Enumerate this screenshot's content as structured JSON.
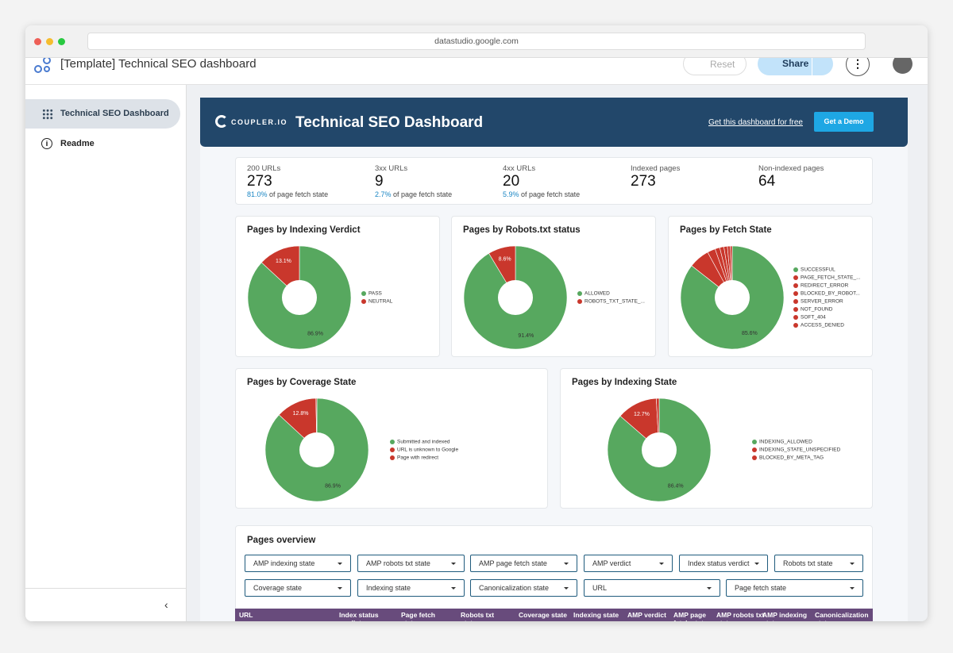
{
  "browser": {
    "url": "datastudio.google.com"
  },
  "app": {
    "title": "[Template] Technical SEO dashboard",
    "reset": "Reset",
    "share": "Share"
  },
  "sidebar": {
    "items": [
      "Technical SEO Dashboard",
      "Readme"
    ]
  },
  "banner": {
    "logo": "COUPLER.IO",
    "title": "Technical SEO Dashboard",
    "link": "Get this dashboard for free",
    "button": "Get a Demo"
  },
  "kpis": [
    {
      "label": "200 URLs",
      "value": 273,
      "pct": "81.0%",
      "note": "of page fetch state"
    },
    {
      "label": "3xx URLs",
      "value": 9,
      "pct": "2.7%",
      "note": "of page fetch state"
    },
    {
      "label": "4xx URLs",
      "value": 20,
      "pct": "5.9%",
      "note": "of page fetch state"
    },
    {
      "label": "Indexed pages",
      "value": 273
    },
    {
      "label": "Non-indexed pages",
      "value": 64
    }
  ],
  "chart_data": [
    {
      "type": "pie",
      "title": "Pages by Indexing Verdict",
      "categories": [
        "PASS",
        "NEUTRAL"
      ],
      "values": [
        86.9,
        13.1
      ],
      "value_labels": [
        "86.9%",
        "13.1%"
      ],
      "colors": [
        "#57a85f",
        "#c9372c"
      ]
    },
    {
      "type": "pie",
      "title": "Pages by Robots.txt status",
      "categories": [
        "ALLOWED",
        "ROBOTS_TXT_STATE_..."
      ],
      "values": [
        91.4,
        8.6
      ],
      "value_labels": [
        "91.4%",
        "8.6%"
      ],
      "colors": [
        "#57a85f",
        "#c9372c"
      ]
    },
    {
      "type": "pie",
      "title": "Pages by Fetch State",
      "categories": [
        "SUCCESSFUL",
        "PAGE_FETCH_STATE_...",
        "REDIRECT_ERROR",
        "BLOCKED_BY_ROBOT...",
        "SERVER_ERROR",
        "NOT_FOUND",
        "SOFT_404",
        "ACCESS_DENIED"
      ],
      "values": [
        85.6,
        6.5,
        2.5,
        1.5,
        1.3,
        1.1,
        0.9,
        0.6
      ],
      "value_labels": [
        "85.6%",
        null,
        null,
        null,
        null,
        null,
        null,
        null
      ],
      "colors": [
        "#57a85f",
        "#c9372c",
        "#c9372c",
        "#c9372c",
        "#c9372c",
        "#c9372c",
        "#c9372c",
        "#c9372c"
      ]
    },
    {
      "type": "pie",
      "title": "Pages by Coverage State",
      "categories": [
        "Submitted and indexed",
        "URL is unknown to Google",
        "Page with redirect"
      ],
      "values": [
        86.9,
        12.8,
        0.3
      ],
      "value_labels": [
        "86.9%",
        "12.8%",
        null
      ],
      "colors": [
        "#57a85f",
        "#c9372c",
        "#c9372c"
      ]
    },
    {
      "type": "pie",
      "title": "Pages by Indexing State",
      "categories": [
        "INDEXING_ALLOWED",
        "INDEXING_STATE_UNSPECIFIED",
        "BLOCKED_BY_META_TAG"
      ],
      "values": [
        86.4,
        12.7,
        0.9
      ],
      "value_labels": [
        "86.4%",
        "12.7%",
        null
      ],
      "colors": [
        "#57a85f",
        "#c9372c",
        "#c9372c"
      ]
    }
  ],
  "overview": {
    "title": "Pages overview",
    "filters": [
      "AMP indexing state",
      "AMP robots txt state",
      "AMP page fetch state",
      "AMP verdict",
      "Index status verdict",
      "Robots txt state",
      "Coverage state",
      "Indexing state",
      "Canonicalization state",
      "URL",
      "Page fetch state"
    ],
    "columns": [
      "URL",
      "Index status verdict",
      "Page fetch state",
      "Robots txt state",
      "Coverage state",
      "Indexing state",
      "AMP verdict",
      "AMP page fetch state",
      "AMP robots txt state",
      "AMP indexing state",
      "Canonicalization state"
    ]
  }
}
